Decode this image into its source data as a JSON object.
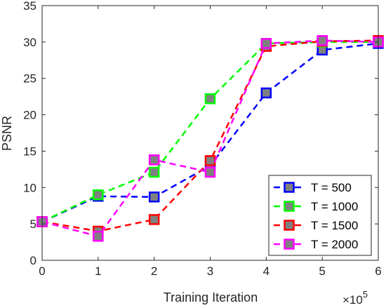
{
  "chart_data": {
    "type": "line",
    "x": [
      0,
      1,
      2,
      3,
      4,
      5,
      6
    ],
    "xlabel": "Training Iteration",
    "ylabel": "PSNR",
    "x_multiplier": {
      "base": "×10",
      "exponent": "5"
    },
    "xlim": [
      0,
      6
    ],
    "ylim": [
      0,
      35
    ],
    "xticks": [
      0,
      1,
      2,
      3,
      4,
      5,
      6
    ],
    "yticks": [
      0,
      5,
      10,
      15,
      20,
      25,
      30,
      35
    ],
    "grid": false,
    "legend_position": "bottom-right",
    "marker_fill": "#808080",
    "series": [
      {
        "name": "T = 500",
        "color": "#0000ff",
        "values": [
          5.3,
          8.8,
          8.7,
          13.0,
          23.0,
          28.9,
          29.8
        ]
      },
      {
        "name": "T = 1000",
        "color": "#00ff00",
        "values": [
          5.3,
          9.0,
          12.1,
          22.2,
          29.8,
          30.0,
          30.0
        ]
      },
      {
        "name": "T = 1500",
        "color": "#ff0000",
        "values": [
          5.3,
          4.0,
          5.6,
          13.7,
          29.4,
          30.1,
          30.2
        ]
      },
      {
        "name": "T = 2000",
        "color": "#ff00ff",
        "values": [
          5.3,
          3.3,
          13.8,
          12.1,
          29.8,
          30.2,
          30.0
        ]
      }
    ]
  }
}
